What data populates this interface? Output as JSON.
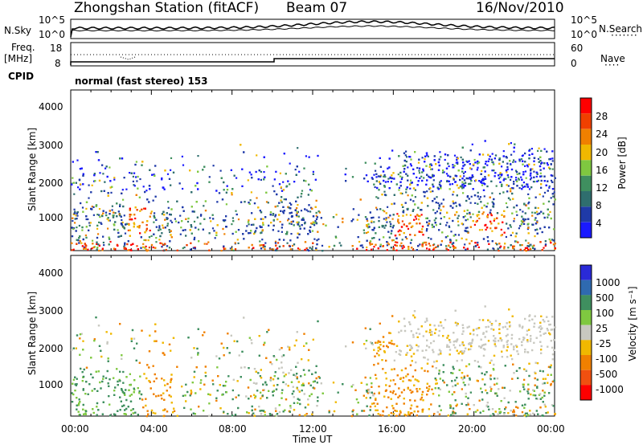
{
  "header": {
    "station": "Zhongshan Station (fitACF)",
    "beam": "Beam 07",
    "date": "16/Nov/2010"
  },
  "panels": {
    "nsky": {
      "label": "N.Sky",
      "ticks": [
        "10^5",
        "10^0"
      ],
      "right_label": "N.Search",
      "right_ticks": [
        "10^5",
        "10^0"
      ]
    },
    "freq": {
      "label_line1": "Freq.",
      "label_line2": "[MHz]",
      "ticks": [
        "18",
        "8"
      ],
      "right_label": "Nave",
      "right_ticks": [
        "60",
        "0"
      ]
    },
    "cpid": {
      "label": "CPID",
      "text": "normal (fast stereo) 153"
    }
  },
  "colors": {
    "power": [
      "#1a1aff",
      "#1f3aa8",
      "#2f6e6e",
      "#3f8f5f",
      "#7fc840",
      "#f0b800",
      "#f08000",
      "#f04000",
      "#ff0000"
    ],
    "velocity": [
      "#2a2ad8",
      "#2f6ab0",
      "#3f8f5f",
      "#7fc840",
      "#c8c8c0",
      "#f0b800",
      "#f08000",
      "#f05010",
      "#ff0000"
    ]
  },
  "chart_data": [
    {
      "type": "heatmap",
      "title": "",
      "xlabel": "Time UT",
      "ylabel": "Slant Range [km]",
      "x_ticks": [
        "00:00",
        "04:00",
        "08:00",
        "12:00",
        "16:00",
        "20:00",
        "00:00"
      ],
      "y_ticks": [
        "1000",
        "2000",
        "3000",
        "4000"
      ],
      "ylim": [
        180,
        4500
      ],
      "colorbar": {
        "label": "Power [dB]",
        "ticks": [
          "28",
          "24",
          "20",
          "16",
          "12",
          "8",
          "4"
        ]
      }
    },
    {
      "type": "heatmap",
      "title": "",
      "xlabel": "Time UT",
      "ylabel": "Slant Range [km]",
      "x_ticks": [
        "00:00",
        "04:00",
        "08:00",
        "12:00",
        "16:00",
        "20:00",
        "00:00"
      ],
      "y_ticks": [
        "1000",
        "2000",
        "3000",
        "4000"
      ],
      "ylim": [
        180,
        4500
      ],
      "colorbar": {
        "label": "Velocity [m s⁻¹]",
        "ticks": [
          "1000",
          "500",
          "100",
          "25",
          "-25",
          "-100",
          "-500",
          "-1000"
        ]
      }
    }
  ]
}
